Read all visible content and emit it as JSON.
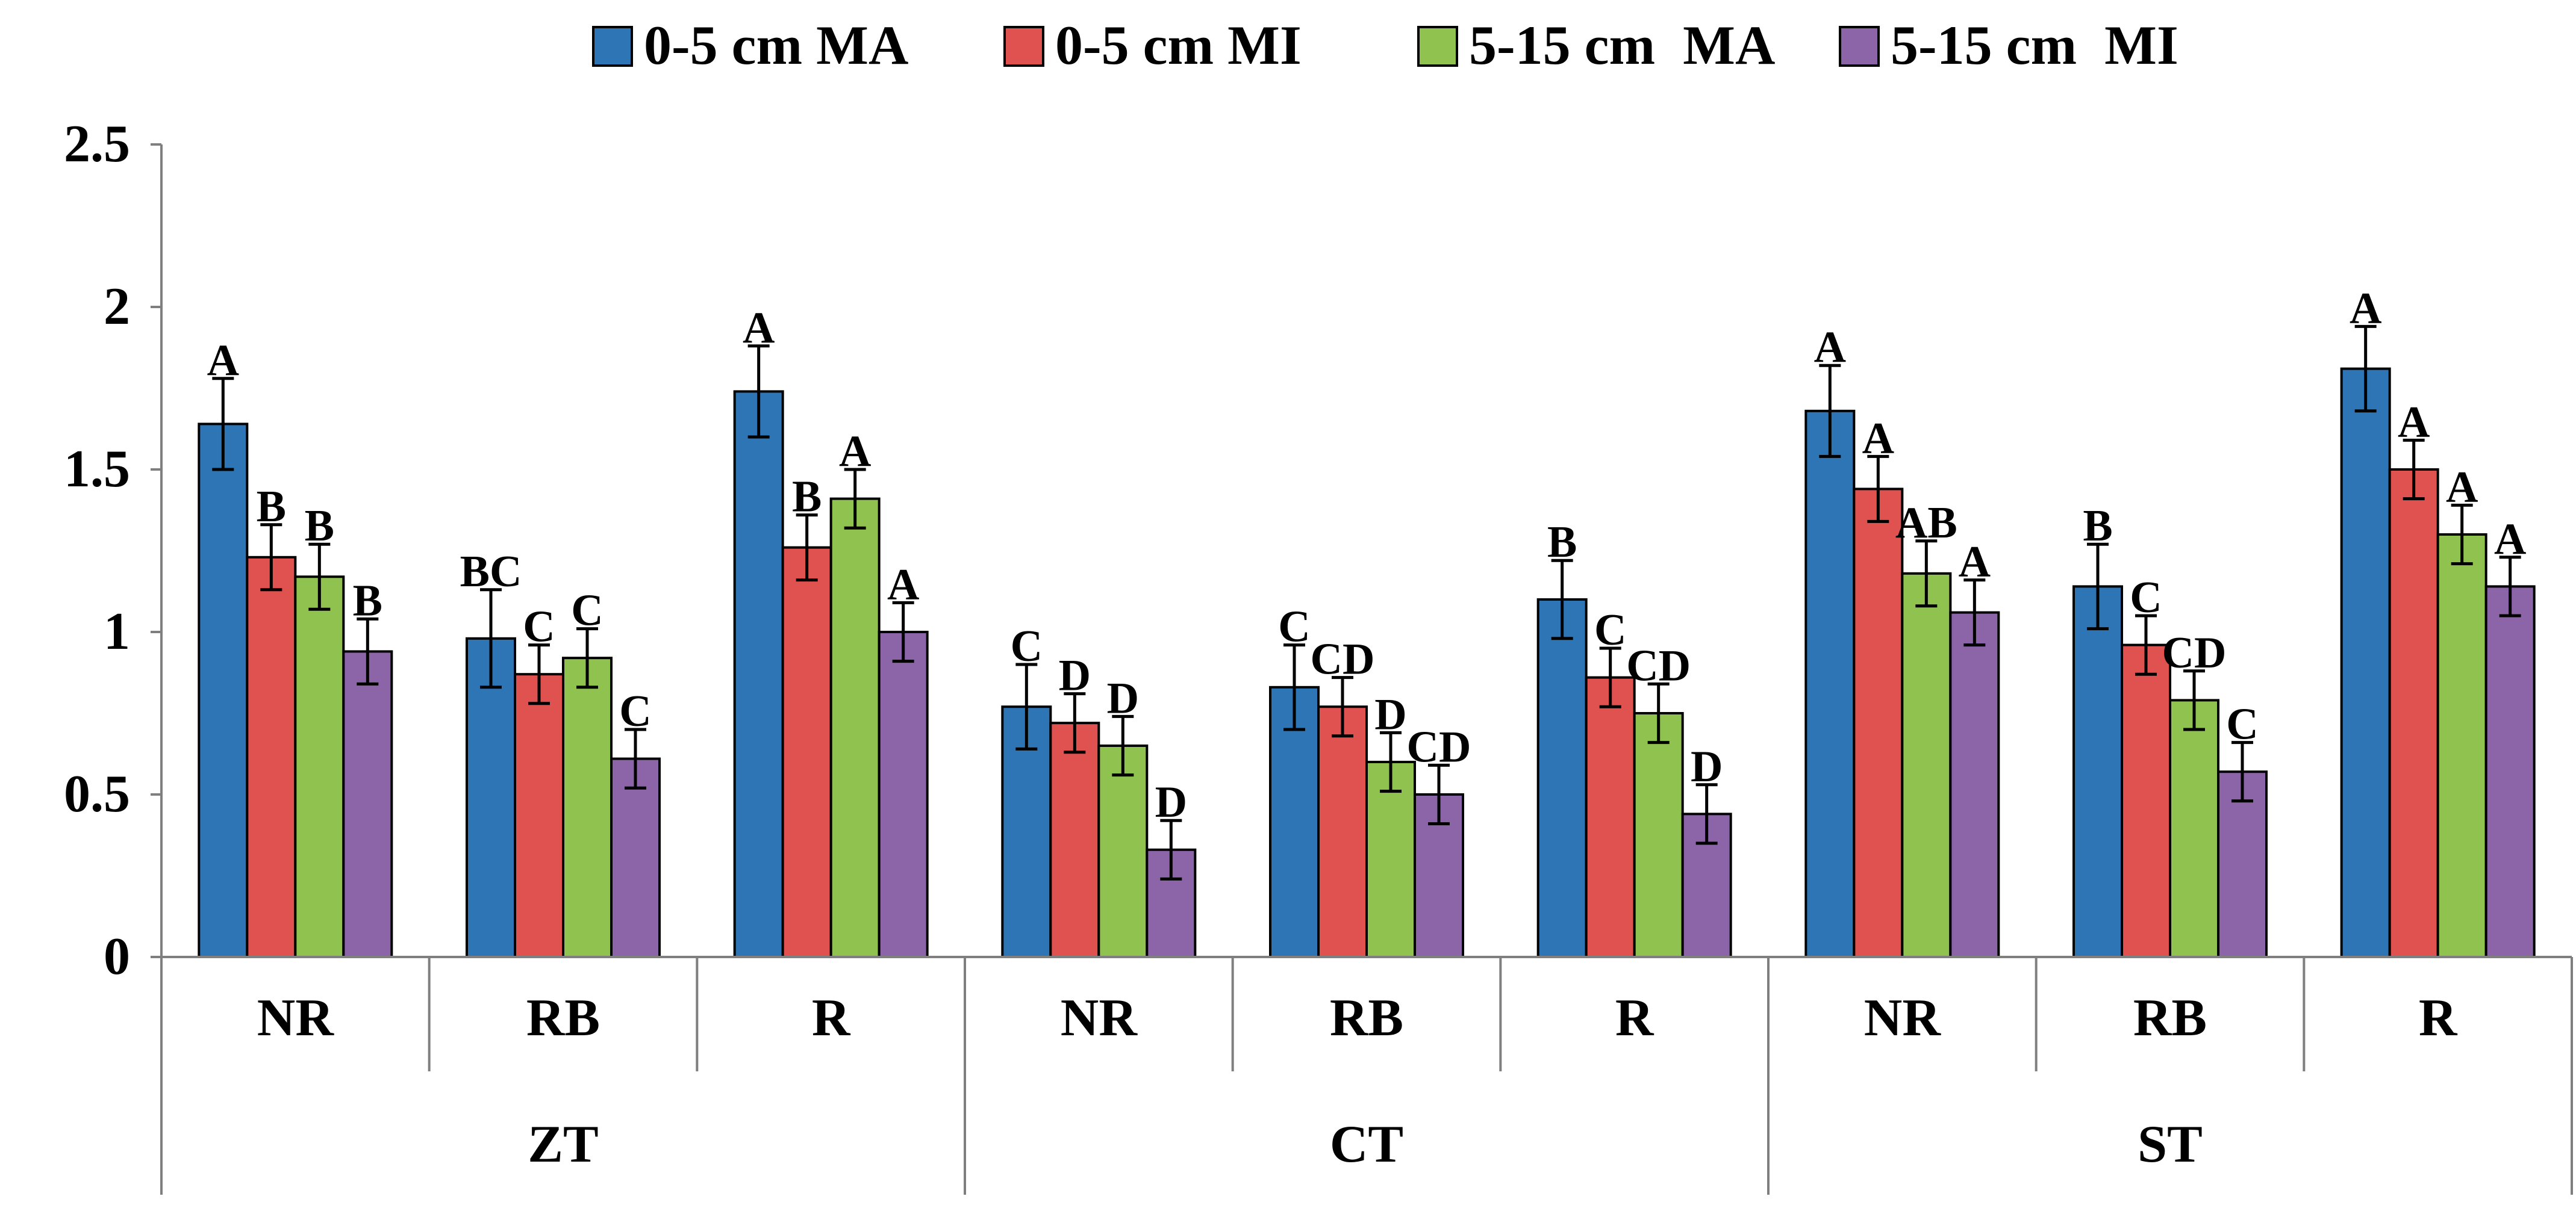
{
  "chart_data": {
    "type": "bar",
    "title": "",
    "xlabel": "",
    "ylabel": "",
    "ylim": [
      0,
      2.5
    ],
    "yticks": [
      "0",
      "0.5",
      "1",
      "1.5",
      "2",
      "2.5"
    ],
    "grid": false,
    "legend_position": "top",
    "groups": [
      {
        "label": "ZT",
        "categories": [
          "NR",
          "RB",
          "R"
        ]
      },
      {
        "label": "CT",
        "categories": [
          "NR",
          "RB",
          "R"
        ]
      },
      {
        "label": "ST",
        "categories": [
          "NR",
          "RB",
          "R"
        ]
      }
    ],
    "series": [
      {
        "name": "0-5 cm MA",
        "color": "#2E75B6",
        "values": [
          1.64,
          0.98,
          1.74,
          0.77,
          0.83,
          1.1,
          1.68,
          1.14,
          1.81
        ],
        "errors": [
          0.14,
          0.15,
          0.14,
          0.13,
          0.13,
          0.12,
          0.14,
          0.13,
          0.13
        ],
        "sig": [
          "A",
          "BC",
          "A",
          "C",
          "C",
          "B",
          "A",
          "B",
          "A"
        ]
      },
      {
        "name": "0-5 cm MI",
        "color": "#E0524F",
        "values": [
          1.23,
          0.87,
          1.26,
          0.72,
          0.77,
          0.86,
          1.44,
          0.96,
          1.5
        ],
        "errors": [
          0.1,
          0.09,
          0.1,
          0.09,
          0.09,
          0.09,
          0.1,
          0.09,
          0.09
        ],
        "sig": [
          "B",
          "C",
          "B",
          "D",
          "CD",
          "C",
          "A",
          "C",
          "A"
        ]
      },
      {
        "name": "5-15 cm  MA",
        "color": "#8FC24F",
        "values": [
          1.17,
          0.92,
          1.41,
          0.65,
          0.6,
          0.75,
          1.18,
          0.79,
          1.3
        ],
        "errors": [
          0.1,
          0.09,
          0.09,
          0.09,
          0.09,
          0.09,
          0.1,
          0.09,
          0.09
        ],
        "sig": [
          "B",
          "C",
          "A",
          "D",
          "D",
          "CD",
          "AB",
          "CD",
          "A"
        ]
      },
      {
        "name": "5-15 cm  MI",
        "color": "#8C65A8",
        "values": [
          0.94,
          0.61,
          1.0,
          0.33,
          0.5,
          0.44,
          1.06,
          0.57,
          1.14
        ],
        "errors": [
          0.1,
          0.09,
          0.09,
          0.09,
          0.09,
          0.09,
          0.1,
          0.09,
          0.09
        ],
        "sig": [
          "B",
          "C",
          "A",
          "D",
          "CD",
          "D",
          "A",
          "C",
          "A"
        ]
      }
    ]
  }
}
